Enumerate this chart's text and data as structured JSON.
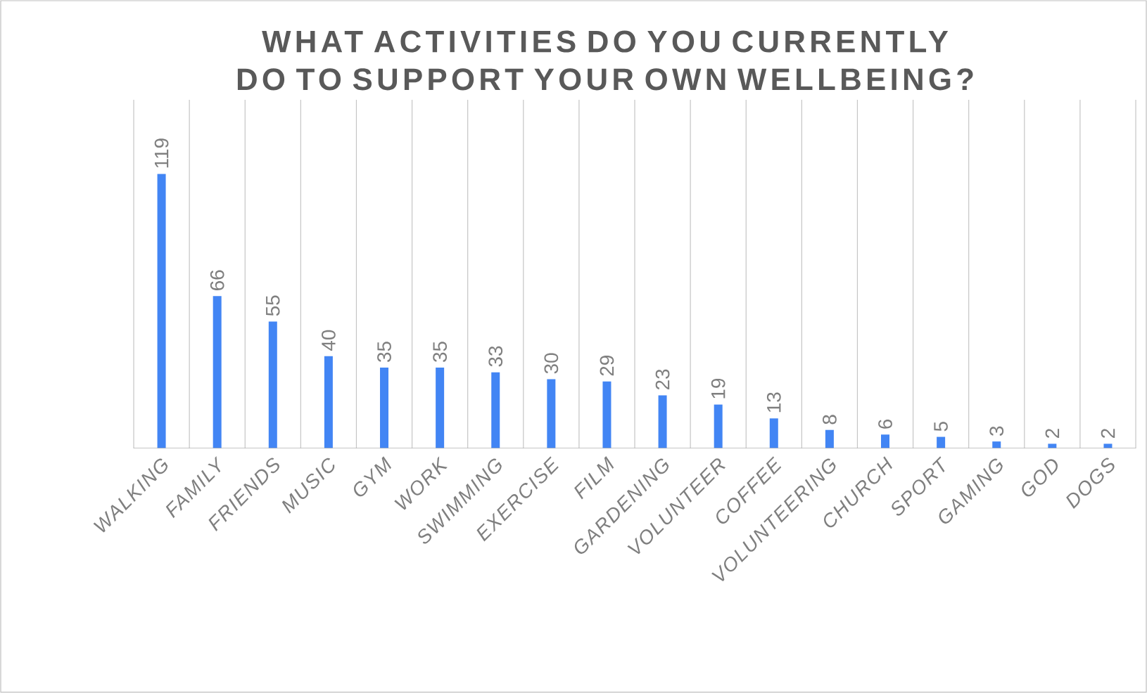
{
  "chart_data": {
    "type": "bar",
    "title": "WHAT ACTIVITIES DO YOU CURRENTLY DO TO SUPPORT YOUR OWN WELLBEING?",
    "categories": [
      "*WALKING*",
      "*FAMILY*",
      "*FRIENDS*",
      "*MUSIC*",
      "*GYM*",
      "*WORK*",
      "*SWIMMING*",
      "*EXERCISE*",
      "*FILM*",
      "*GARDENING*",
      "*VOLUNTEER*",
      "*COFFEE*",
      "*VOLUNTEERING*",
      "*CHURCH*",
      "*SPORT*",
      "*GAMING*",
      "*GOD*",
      "*DOGS*"
    ],
    "values": [
      119,
      66,
      55,
      40,
      35,
      35,
      33,
      30,
      29,
      23,
      19,
      13,
      8,
      6,
      5,
      3,
      2,
      2
    ],
    "color": "#4285f4",
    "data_labels": true,
    "grid": "x"
  }
}
